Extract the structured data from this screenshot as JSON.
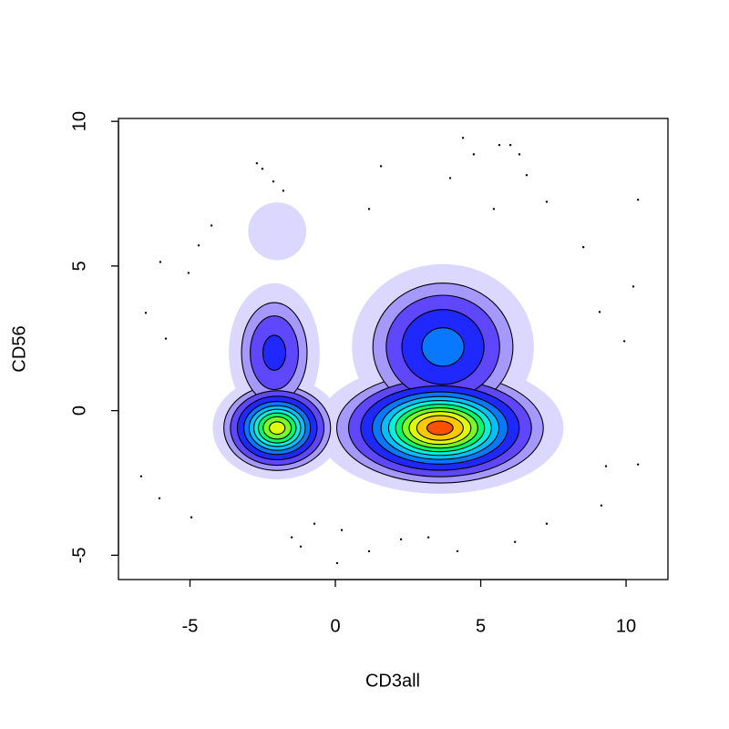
{
  "chart_data": {
    "type": "density",
    "xlabel": "CD3all",
    "ylabel": "CD56",
    "xlim": [
      -7.46,
      11.44
    ],
    "ylim": [
      -5.84,
      10.1
    ],
    "xticks": [
      -5,
      0,
      5,
      10
    ],
    "yticks": [
      -5,
      0,
      5,
      10
    ],
    "levels": [
      0.01,
      0.04,
      0.08,
      0.15,
      0.25,
      0.35,
      0.45,
      0.55,
      0.65,
      0.75,
      0.85,
      0.95
    ],
    "components": [
      {
        "x": 3.6,
        "y": -0.6,
        "sx": 1.4,
        "sy": 0.75,
        "peak": 1.0
      },
      {
        "x": -2.0,
        "y": -0.6,
        "sx": 0.75,
        "sy": 0.6,
        "peak": 0.8
      },
      {
        "x": 3.7,
        "y": 2.2,
        "sx": 1.2,
        "sy": 1.1,
        "peak": 0.3
      },
      {
        "x": -2.1,
        "y": 2.0,
        "sx": 0.65,
        "sy": 1.0,
        "peak": 0.18
      },
      {
        "x": -2.0,
        "y": 6.2,
        "sx": 0.6,
        "sy": 0.6,
        "peak": 0.04
      }
    ],
    "points": {
      "x": [
        -2.7,
        -2.51,
        -2.13,
        -1.79,
        -4.26,
        -4.7,
        -5.05,
        -6.02,
        -6.52,
        -5.83,
        4.39,
        4.76,
        5.64,
        6.02,
        6.33,
        6.58,
        3.95,
        1.57,
        1.16,
        5.45,
        7.27,
        8.53,
        10.41,
        9.09,
        9.94,
        10.25,
        9.31,
        10.41,
        9.15,
        7.27,
        -6.68,
        -6.05,
        -4.95,
        -1.5,
        -0.72,
        0.22,
        1.16,
        2.26,
        3.2,
        4.2,
        6.18,
        0.06,
        -1.19
      ],
      "y": [
        8.55,
        8.36,
        7.92,
        7.6,
        6.4,
        5.71,
        4.76,
        5.14,
        3.38,
        2.49,
        9.43,
        8.86,
        9.18,
        9.18,
        8.86,
        8.14,
        8.04,
        8.45,
        6.97,
        6.97,
        7.22,
        5.65,
        7.29,
        3.41,
        2.4,
        4.29,
        -1.92,
        -1.86,
        -3.28,
        -3.91,
        -2.27,
        -3.03,
        -3.69,
        -4.38,
        -3.91,
        -4.13,
        -4.86,
        -4.45,
        -4.38,
        -4.86,
        -4.54,
        -5.27,
        -4.7
      ]
    }
  }
}
